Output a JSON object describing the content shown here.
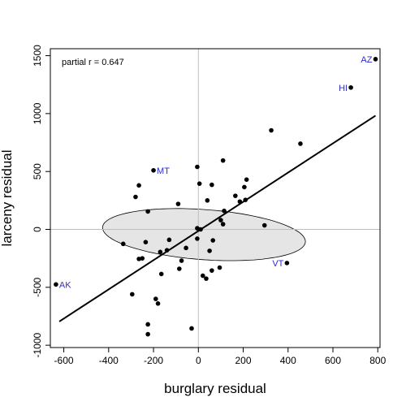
{
  "chart_data": {
    "type": "scatter",
    "title": "",
    "xlabel": "burglary residual",
    "ylabel": "larceny residual",
    "xlim": [
      -660,
      810
    ],
    "ylim": [
      -1020,
      1560
    ],
    "xticks": [
      -600,
      -400,
      -200,
      0,
      200,
      400,
      600,
      800
    ],
    "yticks": [
      -1000,
      -500,
      0,
      500,
      1000,
      1500
    ],
    "reference_lines": {
      "x": 0,
      "y": 0,
      "color": "#bebebe"
    },
    "annotation": "partial r = 0.647",
    "regression_line": {
      "x": [
        -620,
        790
      ],
      "y": [
        -795,
        982
      ]
    },
    "ellipse": {
      "center": [
        25,
        -45
      ],
      "rx": 380,
      "ry": 500,
      "rotation_deg": 49,
      "fill": "#e5e5e5"
    },
    "label_color": "#2b2bd9",
    "points": [
      {
        "x": 790,
        "y": 1470,
        "label": "AZ"
      },
      {
        "x": 680,
        "y": 1225,
        "label": "HI"
      },
      {
        "x": -200,
        "y": 510,
        "label": "MT"
      },
      {
        "x": 395,
        "y": -290,
        "label": "VT"
      },
      {
        "x": -635,
        "y": -475,
        "label": "AK"
      },
      {
        "x": 325,
        "y": 855,
        "label": ""
      },
      {
        "x": 455,
        "y": 740,
        "label": ""
      },
      {
        "x": 110,
        "y": 595,
        "label": ""
      },
      {
        "x": -5,
        "y": 540,
        "label": ""
      },
      {
        "x": 215,
        "y": 430,
        "label": ""
      },
      {
        "x": 5,
        "y": 395,
        "label": ""
      },
      {
        "x": 60,
        "y": 385,
        "label": ""
      },
      {
        "x": -265,
        "y": 380,
        "label": ""
      },
      {
        "x": 205,
        "y": 365,
        "label": ""
      },
      {
        "x": 165,
        "y": 290,
        "label": ""
      },
      {
        "x": -280,
        "y": 280,
        "label": ""
      },
      {
        "x": 210,
        "y": 255,
        "label": ""
      },
      {
        "x": 40,
        "y": 250,
        "label": ""
      },
      {
        "x": 185,
        "y": 240,
        "label": ""
      },
      {
        "x": -90,
        "y": 220,
        "label": ""
      },
      {
        "x": 115,
        "y": 160,
        "label": ""
      },
      {
        "x": -225,
        "y": 155,
        "label": ""
      },
      {
        "x": 100,
        "y": 80,
        "label": ""
      },
      {
        "x": 110,
        "y": 45,
        "label": ""
      },
      {
        "x": 295,
        "y": 35,
        "label": ""
      },
      {
        "x": -5,
        "y": 10,
        "label": ""
      },
      {
        "x": 10,
        "y": 0,
        "label": ""
      },
      {
        "x": -5,
        "y": -80,
        "label": ""
      },
      {
        "x": -130,
        "y": -90,
        "label": ""
      },
      {
        "x": 65,
        "y": -95,
        "label": ""
      },
      {
        "x": -235,
        "y": -110,
        "label": ""
      },
      {
        "x": -335,
        "y": -125,
        "label": ""
      },
      {
        "x": -55,
        "y": -160,
        "label": ""
      },
      {
        "x": -140,
        "y": -180,
        "label": ""
      },
      {
        "x": 50,
        "y": -185,
        "label": ""
      },
      {
        "x": -170,
        "y": -195,
        "label": ""
      },
      {
        "x": -250,
        "y": -250,
        "label": ""
      },
      {
        "x": -265,
        "y": -255,
        "label": ""
      },
      {
        "x": -75,
        "y": -270,
        "label": ""
      },
      {
        "x": 95,
        "y": -330,
        "label": ""
      },
      {
        "x": -85,
        "y": -340,
        "label": ""
      },
      {
        "x": 60,
        "y": -355,
        "label": ""
      },
      {
        "x": -165,
        "y": -385,
        "label": ""
      },
      {
        "x": 20,
        "y": -400,
        "label": ""
      },
      {
        "x": 35,
        "y": -425,
        "label": ""
      },
      {
        "x": -295,
        "y": -560,
        "label": ""
      },
      {
        "x": -190,
        "y": -600,
        "label": ""
      },
      {
        "x": -180,
        "y": -640,
        "label": ""
      },
      {
        "x": -225,
        "y": -820,
        "label": ""
      },
      {
        "x": -30,
        "y": -855,
        "label": ""
      },
      {
        "x": -225,
        "y": -905,
        "label": ""
      }
    ]
  }
}
